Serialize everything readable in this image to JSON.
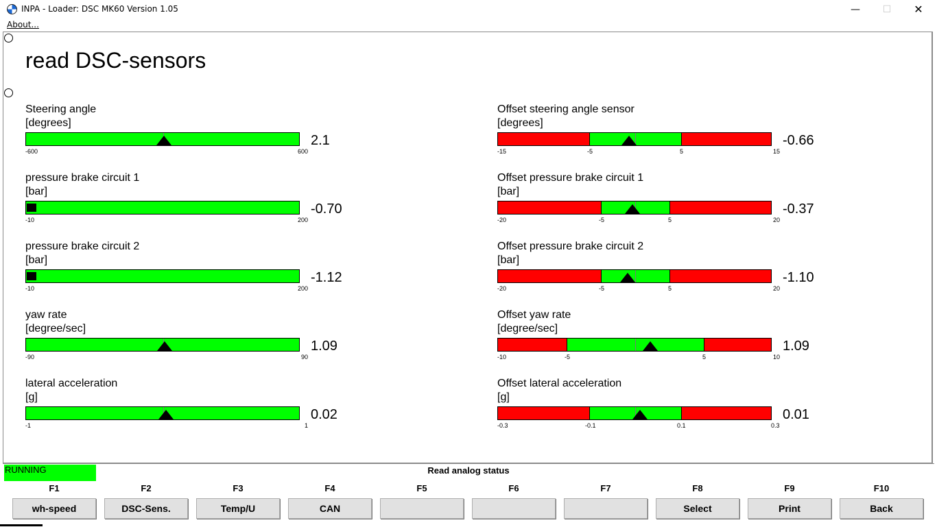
{
  "window": {
    "title": "INPA - Loader:  DSC MK60 Version 1.05",
    "minimize_glyph": "—",
    "maximize_glyph": "☐",
    "close_glyph": "✕"
  },
  "menu": {
    "about": "About..."
  },
  "page": {
    "title": "read DSC-sensors"
  },
  "sensors_left": [
    {
      "label": "Steering angle",
      "unit": "[degrees]",
      "value": "2.1",
      "min_label": "-600",
      "max_label": "600",
      "min": -600,
      "max": 600,
      "reading": 2.1
    },
    {
      "label": "pressure brake circuit 1",
      "unit": "[bar]",
      "value": "-0.70",
      "min_label": "-10",
      "max_label": "200",
      "min": -10,
      "max": 200,
      "reading": -0.7
    },
    {
      "label": "pressure brake circuit 2",
      "unit": "[bar]",
      "value": "-1.12",
      "min_label": "-10",
      "max_label": "200",
      "min": -10,
      "max": 200,
      "reading": -1.12
    },
    {
      "label": "yaw rate",
      "unit": "[degree/sec]",
      "value": "1.09",
      "min_label": "-90",
      "max_label": "90",
      "min": -90,
      "max": 90,
      "reading": 1.09
    },
    {
      "label": "lateral acceleration",
      "unit": "[g]",
      "value": "0.02",
      "min_label": "-1",
      "max_label": "1",
      "min": -1,
      "max": 1,
      "reading": 0.02
    }
  ],
  "sensors_right": [
    {
      "label": "Offset steering angle sensor",
      "unit": "[degrees]",
      "value": "-0.66",
      "min_label": "-15",
      "low_label": "-5",
      "high_label": "5",
      "max_label": "15",
      "min": -15,
      "low": -5,
      "high": 5,
      "max": 15,
      "reading": -0.66
    },
    {
      "label": "Offset pressure brake circuit 1",
      "unit": "[bar]",
      "value": "-0.37",
      "min_label": "-20",
      "low_label": "-5",
      "high_label": "5",
      "max_label": "20",
      "min": -20,
      "low": -5,
      "high": 5,
      "max": 20,
      "reading": -0.37
    },
    {
      "label": "Offset pressure brake circuit 2",
      "unit": "[bar]",
      "value": "-1.10",
      "min_label": "-20",
      "low_label": "-5",
      "high_label": "5",
      "max_label": "20",
      "min": -20,
      "low": -5,
      "high": 5,
      "max": 20,
      "reading": -1.1
    },
    {
      "label": "Offset yaw rate",
      "unit": "[degree/sec]",
      "value": "1.09",
      "min_label": "-10",
      "low_label": "-5",
      "high_label": "5",
      "max_label": "10",
      "min": -10,
      "low": -5,
      "high": 5,
      "max": 10,
      "reading": 1.09
    },
    {
      "label": "Offset lateral acceleration",
      "unit": "[g]",
      "value": "0.01",
      "min_label": "-0.3",
      "low_label": "-0.1",
      "high_label": "0.1",
      "max_label": "0.3",
      "min": -0.3,
      "low": -0.1,
      "high": 0.1,
      "max": 0.3,
      "reading": 0.01
    }
  ],
  "status": {
    "running": "RUNNING",
    "message": "Read analog status"
  },
  "fkeys": [
    {
      "key": "F1",
      "label": "wh-speed"
    },
    {
      "key": "F2",
      "label": "DSC-Sens."
    },
    {
      "key": "F3",
      "label": "Temp/U"
    },
    {
      "key": "F4",
      "label": "CAN"
    },
    {
      "key": "F5",
      "label": ""
    },
    {
      "key": "F6",
      "label": ""
    },
    {
      "key": "F7",
      "label": ""
    },
    {
      "key": "F8",
      "label": "Select"
    },
    {
      "key": "F9",
      "label": "Print"
    },
    {
      "key": "F10",
      "label": "Back"
    }
  ],
  "colors": {
    "ok": "#00ff00",
    "out_of_range": "#ff0000"
  }
}
